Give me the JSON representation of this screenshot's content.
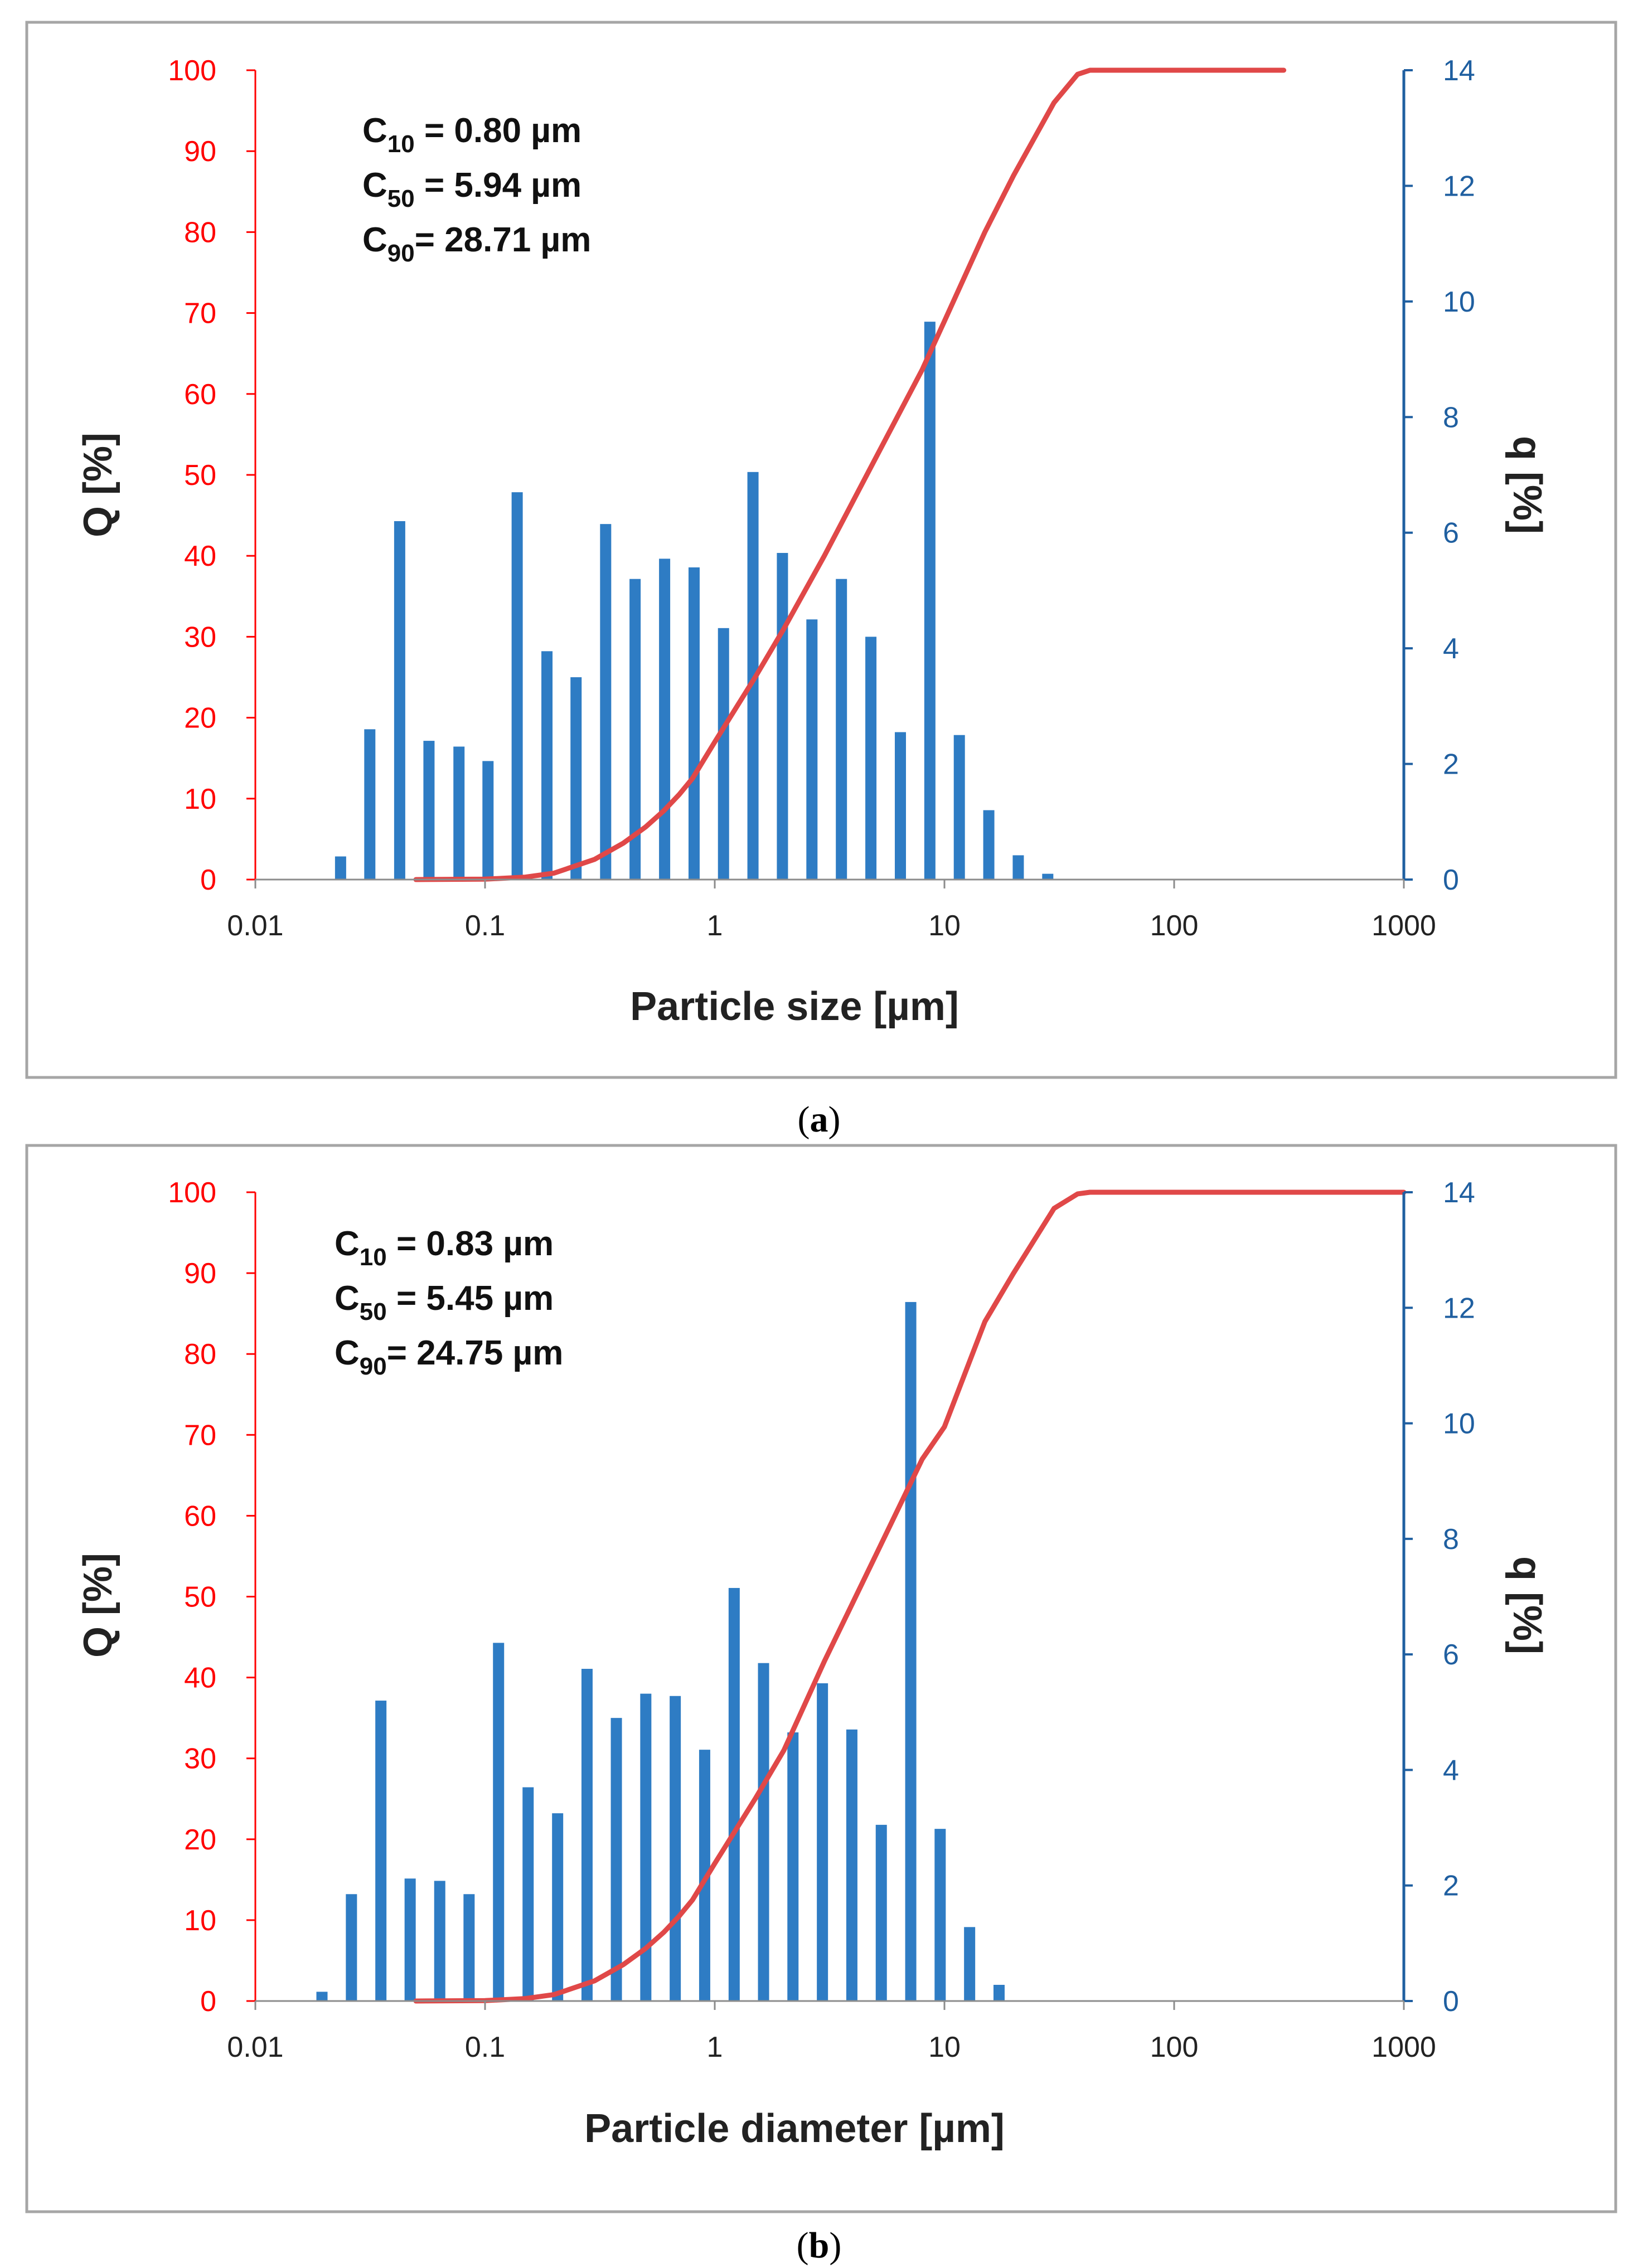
{
  "chart_data": [
    {
      "type": "bar+line",
      "caption": "a",
      "title": "",
      "xlabel": "Particle size [µm]",
      "ylabel_left": "Q [%]",
      "ylabel_right": "q [%]",
      "xscale": "log",
      "xlim": [
        0.01,
        1000
      ],
      "ylim_left": [
        0,
        100
      ],
      "ylim_right": [
        0,
        14
      ],
      "x_ticks": [
        "0.01",
        "0.1",
        "1",
        "10",
        "100",
        "1000"
      ],
      "y_left_ticks": [
        "0",
        "10",
        "20",
        "30",
        "40",
        "50",
        "60",
        "70",
        "80",
        "90",
        "100"
      ],
      "y_right_ticks": [
        "0",
        "2",
        "4",
        "6",
        "8",
        "10",
        "12",
        "14"
      ],
      "colors": {
        "left_axis": "#ff0000",
        "right_axis": "#1f5fa0",
        "bars": "#2e7cc4",
        "line": "#e04848",
        "frame": "#a6a6a6"
      },
      "annotations": [
        {
          "main": "C",
          "sub": "10",
          "text": " = 0.80 µm"
        },
        {
          "main": "C",
          "sub": "50",
          "text": " = 5.94 µm"
        },
        {
          "main": "C",
          "sub": "90",
          "text": "= 28.71 µm"
        }
      ],
      "bars": {
        "name": "q",
        "axis": "right",
        "x": [
          0.0235,
          0.0315,
          0.0425,
          0.057,
          0.077,
          0.103,
          0.138,
          0.186,
          0.249,
          0.335,
          0.45,
          0.605,
          0.813,
          1.092,
          1.467,
          1.971,
          2.649,
          3.56,
          4.784,
          6.43,
          8.64,
          11.61,
          15.6,
          20.96,
          28.17,
          37.86,
          50.87,
          68.36
        ],
        "values": [
          0.4,
          2.6,
          6.2,
          2.4,
          2.3,
          2.05,
          6.7,
          3.95,
          3.5,
          6.15,
          5.2,
          5.55,
          5.4,
          4.35,
          7.05,
          5.65,
          4.5,
          5.2,
          4.2,
          2.55,
          9.65,
          2.5,
          1.2,
          0.42,
          0.1,
          0,
          0,
          0
        ]
      },
      "line": {
        "name": "Q",
        "axis": "left",
        "x": [
          0.05,
          0.1,
          0.15,
          0.2,
          0.3,
          0.4,
          0.5,
          0.6,
          0.7,
          0.8,
          1,
          1.5,
          2,
          3,
          5,
          8,
          10,
          15,
          20,
          30,
          38,
          43,
          100,
          300
        ],
        "values": [
          0,
          0.05,
          0.3,
          0.8,
          2.5,
          4.5,
          6.5,
          8.5,
          10.5,
          12.5,
          17,
          25,
          31,
          40,
          52,
          63,
          69,
          80,
          87,
          96,
          99.5,
          100,
          100,
          100
        ]
      }
    },
    {
      "type": "bar+line",
      "caption": "b",
      "title": "",
      "xlabel": "Particle diameter [µm]",
      "ylabel_left": "Q [%]",
      "ylabel_right": "q [%]",
      "xscale": "log",
      "xlim": [
        0.01,
        1000
      ],
      "ylim_left": [
        0,
        100
      ],
      "ylim_right": [
        0,
        14
      ],
      "x_ticks": [
        "0.01",
        "0.1",
        "1",
        "10",
        "100",
        "1000"
      ],
      "y_left_ticks": [
        "0",
        "10",
        "20",
        "30",
        "40",
        "50",
        "60",
        "70",
        "80",
        "90",
        "100"
      ],
      "y_right_ticks": [
        "0",
        "2",
        "4",
        "6",
        "8",
        "10",
        "12",
        "14"
      ],
      "colors": {
        "left_axis": "#ff0000",
        "right_axis": "#1f5fa0",
        "bars": "#2e7cc4",
        "line": "#e04848",
        "frame": "#a6a6a6"
      },
      "annotations": [
        {
          "main": "C",
          "sub": "10",
          "text": " = 0.83 µm"
        },
        {
          "main": "C",
          "sub": "50",
          "text": " = 5.45 µm"
        },
        {
          "main": "C",
          "sub": "90",
          "text": "= 24.75 µm"
        }
      ],
      "bars": {
        "name": "q",
        "axis": "right",
        "x": [
          0.0195,
          0.0262,
          0.0352,
          0.0472,
          0.0635,
          0.0852,
          0.1145,
          0.154,
          0.207,
          0.278,
          0.373,
          0.501,
          0.673,
          0.904,
          1.215,
          1.631,
          2.19,
          2.943,
          3.953,
          5.31,
          7.134,
          9.58,
          12.87,
          17.29
        ],
        "values": [
          0.16,
          1.85,
          5.2,
          2.12,
          2.08,
          1.85,
          6.2,
          3.7,
          3.25,
          5.75,
          4.9,
          5.32,
          5.28,
          4.35,
          7.15,
          5.85,
          4.65,
          5.5,
          4.7,
          3.05,
          12.1,
          2.98,
          1.28,
          0.28
        ]
      },
      "line": {
        "name": "Q",
        "axis": "left",
        "x": [
          0.05,
          0.1,
          0.15,
          0.2,
          0.3,
          0.4,
          0.5,
          0.6,
          0.7,
          0.8,
          1,
          1.5,
          2,
          3,
          5,
          8,
          10,
          15,
          20,
          30,
          38,
          43,
          100,
          1000
        ],
        "values": [
          0,
          0.05,
          0.3,
          0.8,
          2.5,
          4.5,
          6.5,
          8.5,
          10.5,
          12.5,
          17,
          25,
          31,
          42,
          55,
          67,
          71,
          84,
          90,
          98,
          99.8,
          100,
          100,
          100
        ]
      }
    }
  ]
}
